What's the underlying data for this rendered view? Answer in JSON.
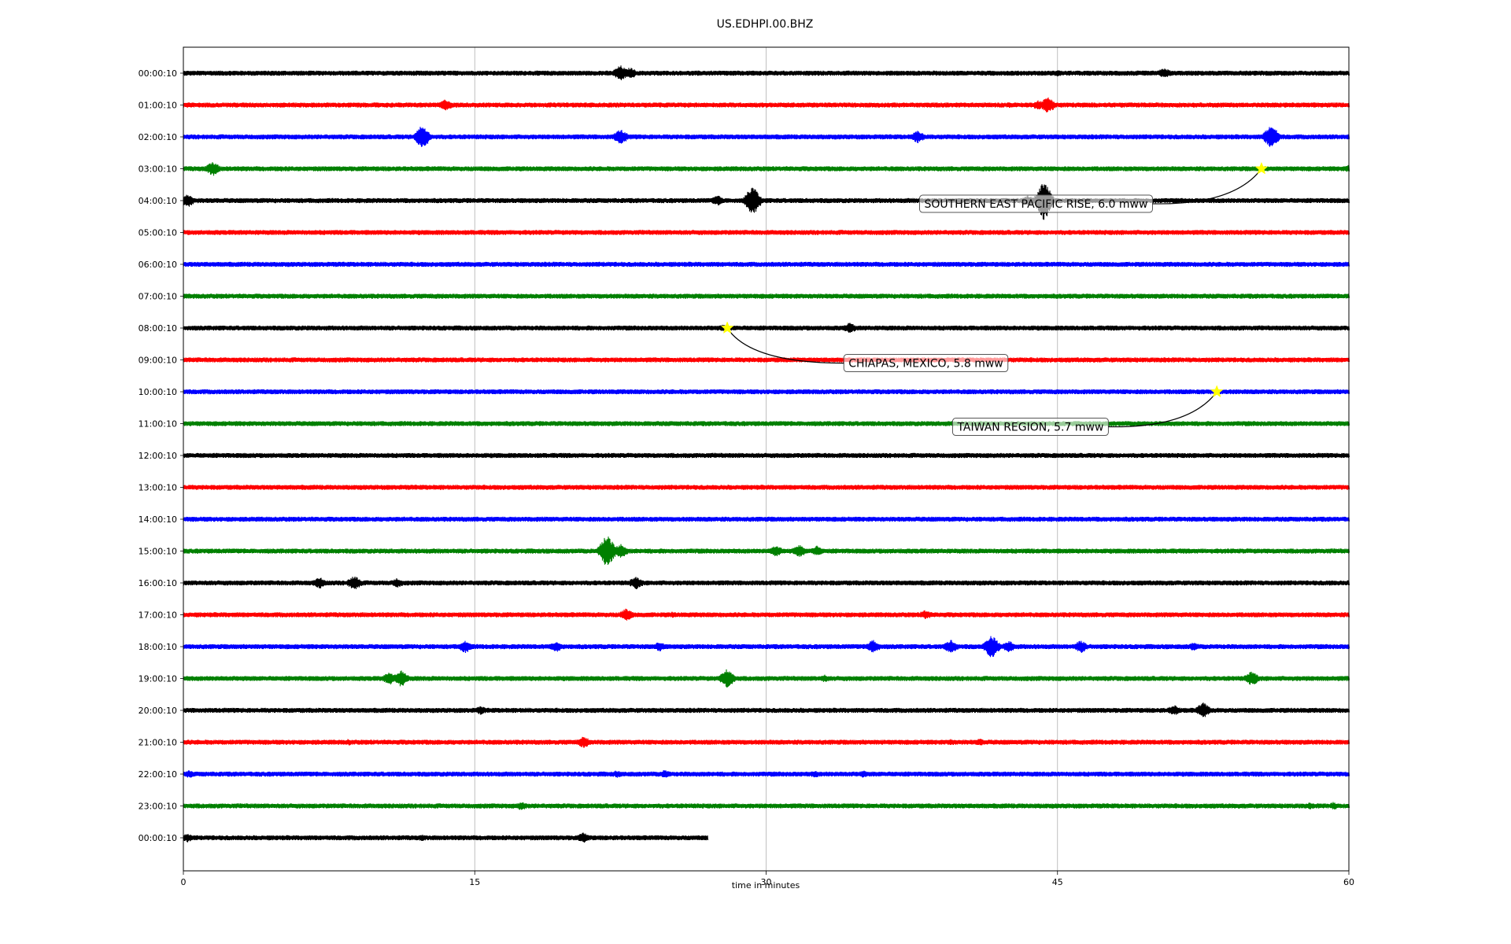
{
  "chart_data": {
    "type": "line",
    "title": "US.EDHPI.00.BHZ",
    "xlabel": "time in minutes",
    "ylabel": "",
    "xlim": [
      0,
      60
    ],
    "x_ticks": [
      0,
      15,
      30,
      45,
      60
    ],
    "x_tick_labels": [
      "0",
      "15",
      "30",
      "45",
      "60"
    ],
    "grid": "vertical",
    "legend": "none",
    "colors": [
      "#000000",
      "#ff0000",
      "#0000ff",
      "#008000"
    ],
    "last_trace_end_minute": 27,
    "rows": [
      {
        "label": "00:00:10",
        "bursts": [
          [
            22.5,
            3.2
          ],
          [
            23.0,
            2.4
          ],
          [
            45.0,
            1.4
          ],
          [
            50.5,
            2.2
          ]
        ]
      },
      {
        "label": "01:00:10",
        "bursts": [
          [
            13.5,
            2.4
          ],
          [
            42.5,
            1.2
          ],
          [
            44.5,
            3.4
          ],
          [
            44.0,
            2.0
          ]
        ]
      },
      {
        "label": "02:00:10",
        "bursts": [
          [
            12.3,
            5.0
          ],
          [
            22.5,
            3.2
          ],
          [
            37.8,
            2.6
          ],
          [
            56.0,
            5.0
          ],
          [
            48.0,
            1.0
          ]
        ]
      },
      {
        "label": "03:00:10",
        "bursts": [
          [
            1.5,
            3.0
          ],
          [
            5.0,
            1.2
          ],
          [
            36.5,
            1.1
          ],
          [
            60.0,
            1.6
          ]
        ]
      },
      {
        "label": "04:00:10",
        "bursts": [
          [
            0.2,
            2.8
          ],
          [
            27.5,
            2.2
          ],
          [
            29.3,
            6.0
          ],
          [
            43.5,
            2.2
          ],
          [
            44.3,
            8.5
          ]
        ]
      },
      {
        "label": "05:00:10",
        "bursts": []
      },
      {
        "label": "06:00:10",
        "bursts": []
      },
      {
        "label": "07:00:10",
        "bursts": []
      },
      {
        "label": "08:00:10",
        "bursts": [
          [
            34.3,
            2.2
          ],
          [
            27.8,
            1.5
          ]
        ]
      },
      {
        "label": "09:00:10",
        "bursts": []
      },
      {
        "label": "10:00:10",
        "bursts": []
      },
      {
        "label": "11:00:10",
        "bursts": []
      },
      {
        "label": "12:00:10",
        "bursts": []
      },
      {
        "label": "13:00:10",
        "bursts": []
      },
      {
        "label": "14:00:10",
        "bursts": []
      },
      {
        "label": "15:00:10",
        "bursts": [
          [
            21.8,
            7.0
          ],
          [
            22.5,
            3.0
          ],
          [
            30.5,
            2.4
          ],
          [
            31.7,
            2.6
          ],
          [
            32.6,
            2.2
          ],
          [
            56.0,
            1.0
          ]
        ]
      },
      {
        "label": "16:00:10",
        "bursts": [
          [
            7.0,
            2.4
          ],
          [
            8.8,
            3.0
          ],
          [
            11.0,
            2.0
          ],
          [
            23.3,
            2.6
          ],
          [
            59.0,
            1.2
          ]
        ]
      },
      {
        "label": "17:00:10",
        "bursts": [
          [
            22.8,
            2.6
          ],
          [
            25.2,
            1.3
          ],
          [
            38.2,
            2.0
          ],
          [
            58.0,
            1.0
          ]
        ]
      },
      {
        "label": "18:00:10",
        "bursts": [
          [
            14.5,
            2.6
          ],
          [
            19.2,
            2.2
          ],
          [
            24.5,
            2.0
          ],
          [
            35.5,
            2.8
          ],
          [
            39.5,
            2.8
          ],
          [
            41.6,
            4.8
          ],
          [
            42.5,
            2.4
          ],
          [
            46.2,
            2.6
          ],
          [
            52.0,
            1.8
          ]
        ]
      },
      {
        "label": "19:00:10",
        "bursts": [
          [
            10.6,
            2.6
          ],
          [
            11.2,
            3.4
          ],
          [
            28.0,
            4.0
          ],
          [
            33.0,
            1.6
          ],
          [
            55.0,
            3.0
          ]
        ]
      },
      {
        "label": "20:00:10",
        "bursts": [
          [
            15.3,
            1.8
          ],
          [
            51.0,
            2.2
          ],
          [
            52.5,
            3.2
          ]
        ]
      },
      {
        "label": "21:00:10",
        "bursts": [
          [
            20.6,
            2.4
          ],
          [
            8.5,
            1.3
          ],
          [
            39.5,
            1.4
          ],
          [
            41.0,
            1.6
          ]
        ]
      },
      {
        "label": "22:00:10",
        "bursts": [
          [
            0.3,
            1.6
          ],
          [
            22.3,
            1.5
          ],
          [
            24.8,
            1.8
          ],
          [
            32.5,
            1.5
          ],
          [
            35.0,
            1.5
          ]
        ]
      },
      {
        "label": "23:00:10",
        "bursts": [
          [
            17.4,
            1.8
          ],
          [
            58.0,
            1.4
          ],
          [
            59.2,
            1.6
          ]
        ]
      },
      {
        "label": "00:00:10",
        "bursts": [
          [
            0.2,
            1.8
          ],
          [
            12.3,
            1.4
          ],
          [
            20.6,
            2.2
          ]
        ]
      }
    ],
    "events": [
      {
        "label": "SOUTHERN EAST PACIFIC RISE, 6.0 mww",
        "row": 3,
        "minute": 55.5,
        "label_minute": 37.9,
        "label_row": 4.1,
        "box_color": "#ffffff",
        "marker_color": "#ffff00"
      },
      {
        "label": "CHIAPAS, MEXICO, 5.8 mww",
        "row": 8,
        "minute": 28.0,
        "label_minute": 34.0,
        "label_row": 9.1,
        "box_color": "#ffffff",
        "marker_color": "#ffff00"
      },
      {
        "label": "TAIWAN REGION, 5.7 mww",
        "row": 10,
        "minute": 53.2,
        "label_minute": 39.6,
        "label_row": 11.1,
        "box_color": "#ffffff",
        "marker_color": "#ffff00"
      }
    ]
  }
}
